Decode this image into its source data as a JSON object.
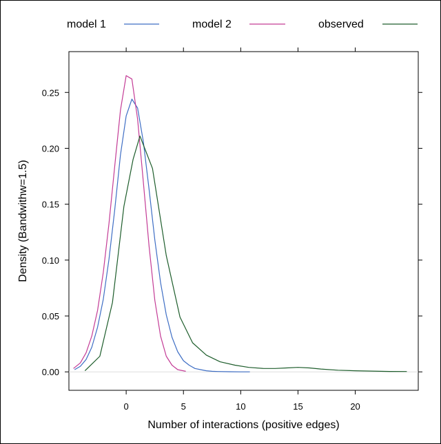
{
  "chart_data": {
    "type": "line",
    "title": "",
    "xlabel": "Number of interactions (positive edges)",
    "ylabel": "Density (Bandwithw=1.5)",
    "xlim": [
      -5,
      25.5
    ],
    "ylim": [
      -0.0165,
      0.2865
    ],
    "x_ticks": [
      0,
      5,
      10,
      15,
      20
    ],
    "y_ticks": [
      0.0,
      0.05,
      0.1,
      0.15,
      0.2,
      0.25
    ],
    "y_tick_labels": [
      "0.00",
      "0.05",
      "0.10",
      "0.15",
      "0.20",
      "0.25"
    ],
    "grid": false,
    "legend_position": "top",
    "series": [
      {
        "name": "model 1",
        "color": "#3d6dc4",
        "x": [
          -4.5,
          -4.0,
          -3.5,
          -3.0,
          -2.5,
          -2.0,
          -1.5,
          -1.0,
          -0.5,
          0.0,
          0.5,
          1.0,
          1.5,
          2.0,
          2.5,
          3.0,
          3.5,
          4.0,
          4.5,
          5.0,
          5.5,
          6.0,
          6.5,
          7.0,
          7.5,
          8.0,
          9.0,
          10.0,
          10.8
        ],
        "y": [
          0.002,
          0.005,
          0.011,
          0.022,
          0.04,
          0.065,
          0.101,
          0.145,
          0.194,
          0.229,
          0.244,
          0.236,
          0.206,
          0.163,
          0.118,
          0.08,
          0.051,
          0.031,
          0.018,
          0.01,
          0.006,
          0.003,
          0.002,
          0.001,
          0.0005,
          0.0003,
          0.0001,
          0.0,
          0.0
        ]
      },
      {
        "name": "model 2",
        "color": "#c33a95",
        "x": [
          -4.6,
          -4.0,
          -3.5,
          -3.0,
          -2.5,
          -2.0,
          -1.5,
          -1.0,
          -0.5,
          0.0,
          0.5,
          1.0,
          1.5,
          2.0,
          2.5,
          3.0,
          3.5,
          4.0,
          4.5,
          5.2
        ],
        "y": [
          0.003,
          0.008,
          0.017,
          0.032,
          0.055,
          0.089,
          0.133,
          0.184,
          0.234,
          0.265,
          0.262,
          0.226,
          0.17,
          0.112,
          0.064,
          0.032,
          0.014,
          0.006,
          0.002,
          0.0005
        ]
      },
      {
        "name": "observed",
        "color": "#1c5c2a",
        "x": [
          -3.6,
          -2.3,
          -1.2,
          -0.2,
          0.6,
          1.2,
          2.3,
          3.5,
          4.7,
          5.8,
          7.0,
          8.2,
          9.5,
          10.7,
          12.0,
          13.0,
          14.0,
          15.0,
          16.0,
          17.0,
          18.5,
          20.0,
          21.5,
          23.0,
          24.5
        ],
        "y": [
          0.001,
          0.014,
          0.062,
          0.148,
          0.19,
          0.211,
          0.182,
          0.104,
          0.049,
          0.026,
          0.015,
          0.009,
          0.006,
          0.004,
          0.003,
          0.003,
          0.0035,
          0.004,
          0.0035,
          0.0025,
          0.0015,
          0.001,
          0.0007,
          0.0004,
          0.0003
        ]
      }
    ]
  }
}
